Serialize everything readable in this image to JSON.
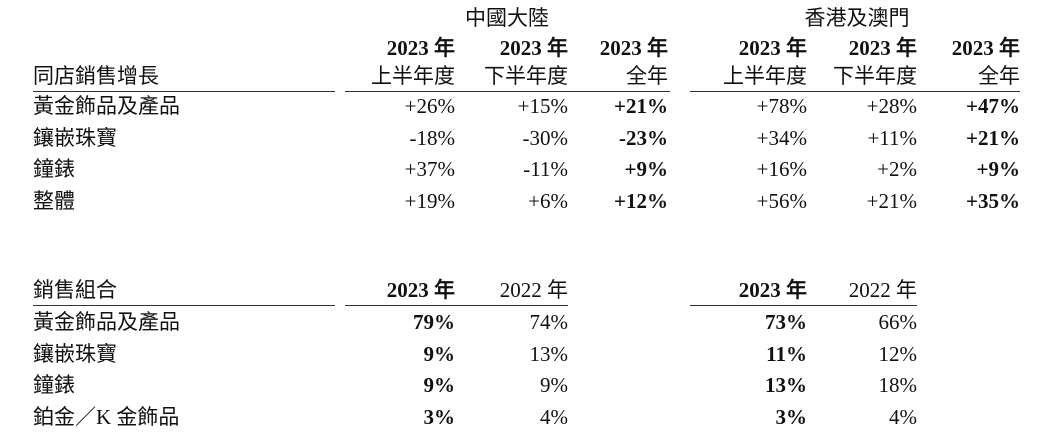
{
  "table1": {
    "title": "同店銷售增長",
    "regions": [
      "中國大陸",
      "香港及澳門"
    ],
    "columns": [
      [
        "2023 年",
        "上半年度"
      ],
      [
        "2023 年",
        "下半年度"
      ],
      [
        "2023 年",
        "全年"
      ],
      [
        "2023 年",
        "上半年度"
      ],
      [
        "2023 年",
        "下半年度"
      ],
      [
        "2023 年",
        "全年"
      ]
    ],
    "rows": [
      {
        "label": "黃金飾品及產品",
        "values": [
          "+26%",
          "+15%",
          "+21%",
          "+78%",
          "+28%",
          "+47%"
        ]
      },
      {
        "label": "鑲嵌珠寶",
        "values": [
          "-18%",
          "-30%",
          "-23%",
          "+34%",
          "+11%",
          "+21%"
        ]
      },
      {
        "label": "鐘錶",
        "values": [
          "+37%",
          "-11%",
          "+9%",
          "+16%",
          "+2%",
          "+9%"
        ]
      },
      {
        "label": "整體",
        "values": [
          "+19%",
          "+6%",
          "+12%",
          "+56%",
          "+21%",
          "+35%"
        ]
      }
    ]
  },
  "table2": {
    "title": "銷售組合",
    "columns": [
      "2023 年",
      "2022 年",
      "2023 年",
      "2022 年"
    ],
    "rows": [
      {
        "label": "黃金飾品及產品",
        "values": [
          "79%",
          "74%",
          "73%",
          "66%"
        ]
      },
      {
        "label": "鑲嵌珠寶",
        "values": [
          "9%",
          "13%",
          "11%",
          "12%"
        ]
      },
      {
        "label": "鐘錶",
        "values": [
          "9%",
          "9%",
          "13%",
          "18%"
        ]
      },
      {
        "label": "鉑金／K 金飾品",
        "values": [
          "3%",
          "4%",
          "3%",
          "4%"
        ]
      }
    ]
  }
}
